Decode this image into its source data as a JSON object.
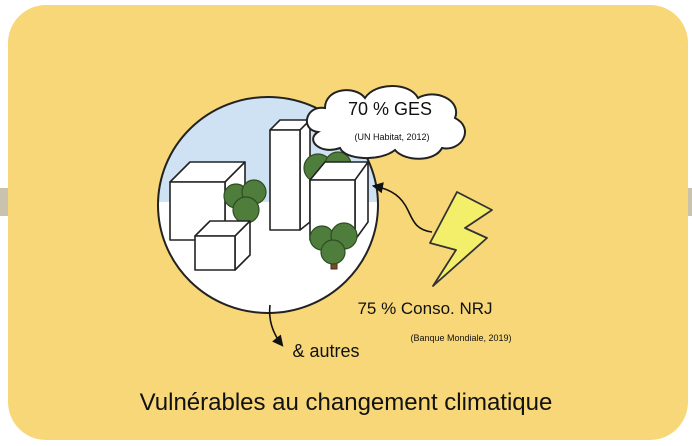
{
  "cloud": {
    "title": "70 % GES",
    "source": "(UN Habitat, 2012)"
  },
  "energy": {
    "title": "75 % Conso. NRJ",
    "source": "(Banque Mondiale, 2019)"
  },
  "others": "& autres",
  "caption": "Vulnérables au changement climatique"
}
